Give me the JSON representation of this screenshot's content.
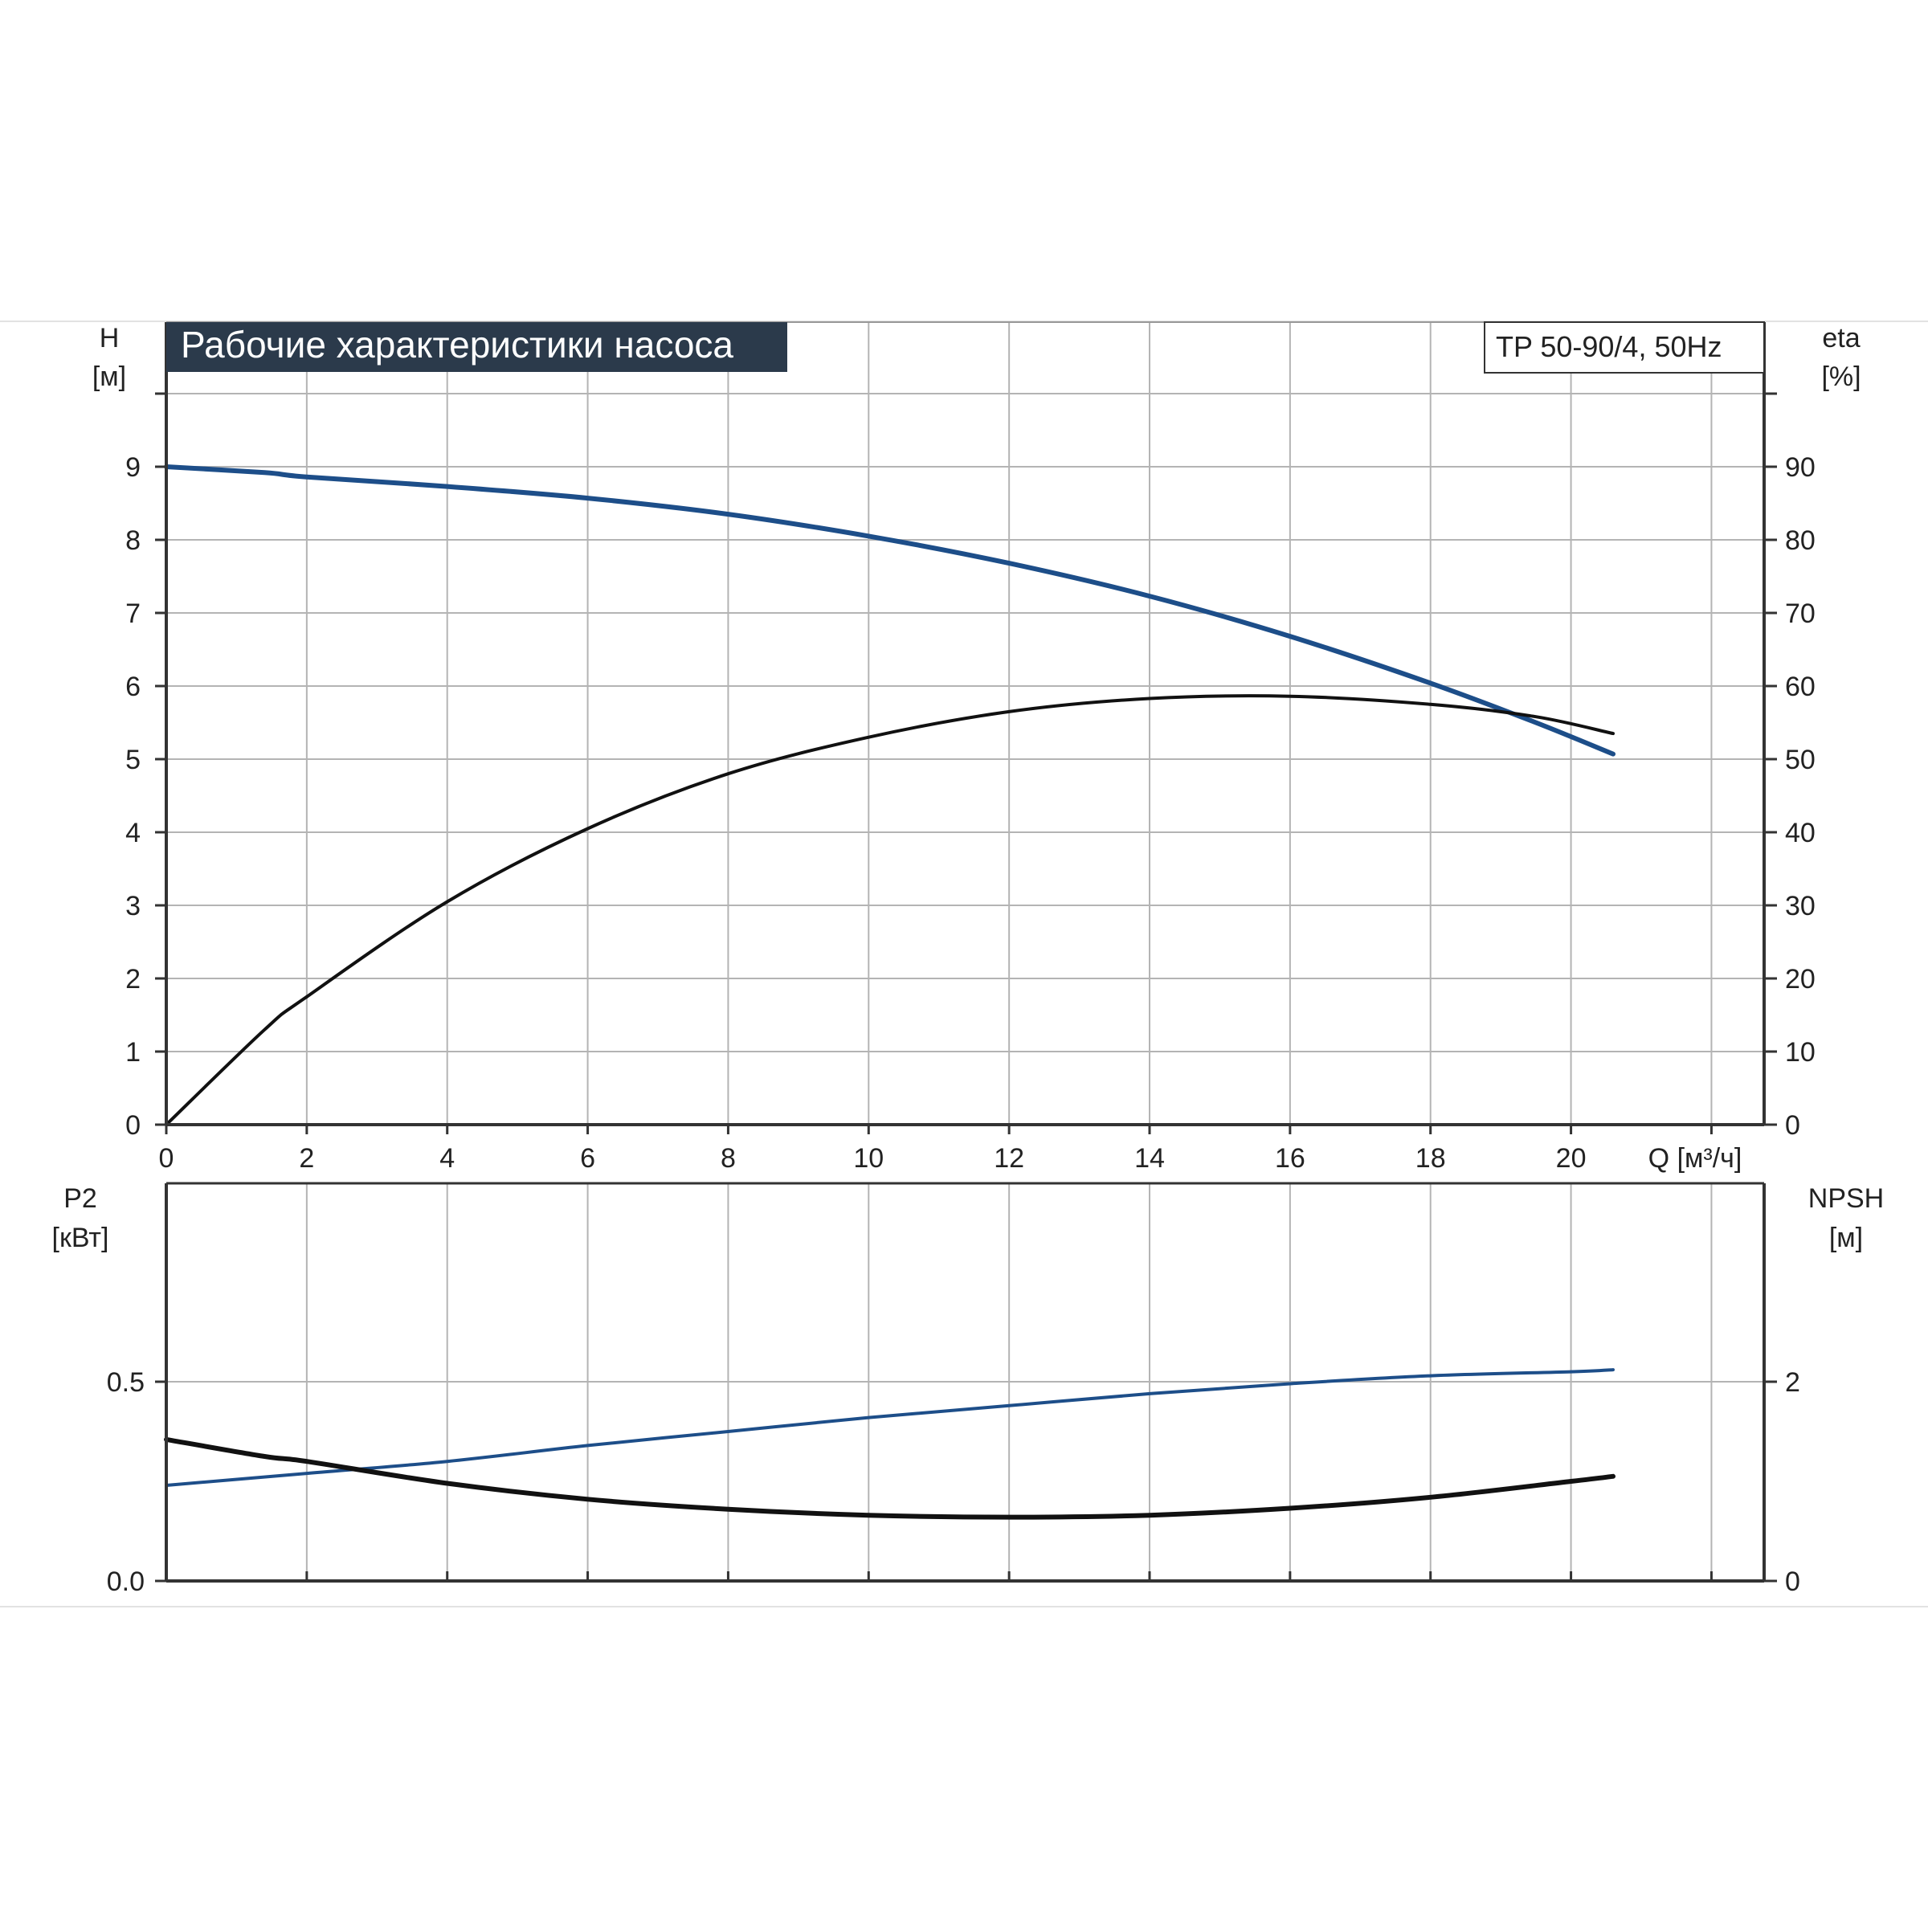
{
  "title": "Рабочие характеристики насоса",
  "model": "TP 50-90/4, 50Hz",
  "colors": {
    "blue": "#1d4e89",
    "black": "#111111",
    "grid": "#b4b4b4",
    "axis": "#333333",
    "title_bg": "#2b3a4b",
    "title_fg": "#ffffff"
  },
  "chart_data": [
    {
      "id": "top",
      "type": "line",
      "x_axis": {
        "label": "Q [м³/ч]",
        "range": [
          0,
          22.75
        ],
        "ticks": [
          0,
          2,
          4,
          6,
          8,
          10,
          12,
          14,
          16,
          18,
          20
        ],
        "tick_labels": [
          "0",
          "2",
          "4",
          "6",
          "8",
          "10",
          "12",
          "14",
          "16",
          "18",
          "20"
        ]
      },
      "y_left": {
        "label_line1": "H",
        "label_line2": "[м]",
        "range": [
          0,
          10
        ],
        "ticks": [
          0,
          1,
          2,
          3,
          4,
          5,
          6,
          7,
          8,
          9
        ],
        "tick_labels": [
          "0",
          "1",
          "2",
          "3",
          "4",
          "5",
          "6",
          "7",
          "8",
          "9"
        ]
      },
      "y_right": {
        "label_line1": "eta",
        "label_line2": "[%]",
        "range": [
          0,
          100
        ],
        "ticks": [
          0,
          10,
          20,
          30,
          40,
          50,
          60,
          70,
          80,
          90
        ],
        "tick_labels": [
          "0",
          "10",
          "20",
          "30",
          "40",
          "50",
          "60",
          "70",
          "80",
          "90"
        ]
      },
      "grid": true,
      "series": [
        {
          "key": "head",
          "axis": "left",
          "color": "blue",
          "x": [
            0,
            1.4,
            2,
            4,
            6,
            8,
            10,
            12,
            14,
            16,
            18,
            19.5,
            20.6
          ],
          "y": [
            9.0,
            8.92,
            8.86,
            8.73,
            8.57,
            8.35,
            8.05,
            7.68,
            7.23,
            6.68,
            6.04,
            5.5,
            5.07
          ]
        },
        {
          "key": "efficiency",
          "axis": "right",
          "color": "black",
          "x": [
            0,
            1.4,
            2,
            4,
            6,
            8,
            10,
            12,
            14,
            16,
            18,
            19.5,
            20.6
          ],
          "y": [
            0,
            13.0,
            17.5,
            30.5,
            40.5,
            48.0,
            53.0,
            56.5,
            58.3,
            58.6,
            57.5,
            55.8,
            53.5
          ]
        }
      ]
    },
    {
      "id": "bottom",
      "type": "line",
      "x_axis": {
        "range": [
          0,
          22.75
        ],
        "ticks": [
          0,
          2,
          4,
          6,
          8,
          10,
          12,
          14,
          16,
          18,
          20,
          22
        ]
      },
      "y_left": {
        "label_line1": "P2",
        "label_line2": "[кВт]",
        "range": [
          0,
          1.0
        ],
        "ticks": [
          0.0,
          0.5
        ],
        "tick_labels": [
          "0.0",
          "0.5"
        ]
      },
      "y_right": {
        "label_line1": "NPSH",
        "label_line2": "[м]",
        "range": [
          0,
          4
        ],
        "ticks": [
          0,
          2
        ],
        "tick_labels": [
          "0",
          "2"
        ]
      },
      "grid": true,
      "series": [
        {
          "key": "power",
          "axis": "left",
          "color": "blue",
          "x": [
            0,
            2,
            4,
            6,
            8,
            10,
            12,
            14,
            16,
            18,
            20,
            20.6
          ],
          "y": [
            0.24,
            0.27,
            0.3,
            0.34,
            0.375,
            0.41,
            0.44,
            0.47,
            0.495,
            0.515,
            0.525,
            0.53
          ]
        },
        {
          "key": "npsh",
          "axis": "right",
          "color": "black",
          "x": [
            0,
            1.4,
            2,
            4,
            6,
            8,
            10,
            12,
            14,
            16,
            18,
            20,
            20.6
          ],
          "y": [
            1.42,
            1.25,
            1.2,
            0.98,
            0.82,
            0.72,
            0.66,
            0.64,
            0.66,
            0.73,
            0.84,
            1.0,
            1.05
          ]
        }
      ]
    }
  ]
}
